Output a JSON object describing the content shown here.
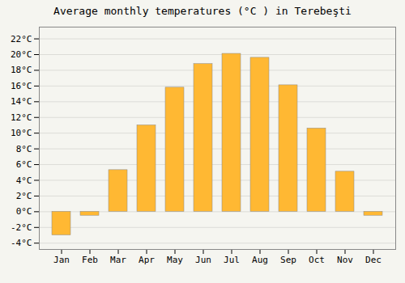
{
  "chart_data": {
    "type": "bar",
    "title": "Average monthly temperatures (°C ) in Terebeşti",
    "categories": [
      "Jan",
      "Feb",
      "Mar",
      "Apr",
      "May",
      "Jun",
      "Jul",
      "Aug",
      "Sep",
      "Oct",
      "Nov",
      "Dec"
    ],
    "values": [
      -3.0,
      -0.5,
      5.3,
      11.0,
      15.8,
      18.8,
      20.1,
      19.6,
      16.1,
      10.6,
      5.1,
      -0.5
    ],
    "color": "#FFB833",
    "ylim": [
      -4.8,
      23.5
    ],
    "yticks": [
      {
        "value": -4,
        "label": "-4°C"
      },
      {
        "value": -2,
        "label": "-2°C"
      },
      {
        "value": 0,
        "label": "0°C"
      },
      {
        "value": 2,
        "label": "2°C"
      },
      {
        "value": 4,
        "label": "4°C"
      },
      {
        "value": 6,
        "label": "6°C"
      },
      {
        "value": 8,
        "label": "8°C"
      },
      {
        "value": 10,
        "label": "10°C"
      },
      {
        "value": 12,
        "label": "12°C"
      },
      {
        "value": 14,
        "label": "14°C"
      },
      {
        "value": 16,
        "label": "16°C"
      },
      {
        "value": 18,
        "label": "18°C"
      },
      {
        "value": 20,
        "label": "20°C"
      },
      {
        "value": 22,
        "label": "22°C"
      }
    ],
    "grid": true
  }
}
